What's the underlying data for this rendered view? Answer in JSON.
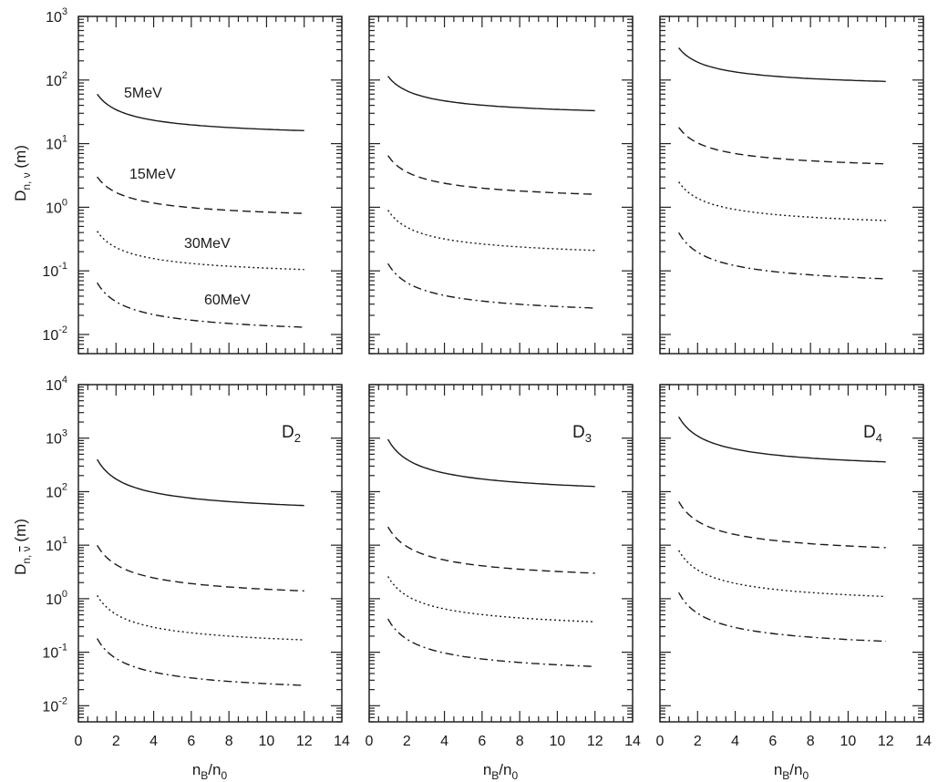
{
  "figure": {
    "xlabel_top": "n",
    "xlabel_sub1": "B",
    "xlabel_mid": "/n",
    "xlabel_sub2": "0",
    "ylabel_top": "D",
    "ylabel_top_sub": "n, ν",
    "ylabel_top_unit": " (m)",
    "ylabel_bottom": "D",
    "ylabel_bottom_sub_a": "n, ",
    "ylabel_bottom_sub_b": "ν",
    "ylabel_bottom_unit": " (m)",
    "energies": [
      "5MeV",
      "15MeV",
      "30MeV",
      "60MeV"
    ],
    "panel_labels": [
      "D",
      "D",
      "D"
    ],
    "panel_label_subs": [
      "2",
      "3",
      "4"
    ]
  },
  "chart_data": [
    {
      "type": "line",
      "panel": "top-left",
      "y_scale": "log",
      "xlim": [
        0,
        14
      ],
      "ylim": [
        0.005,
        1000
      ],
      "xticks": [
        0,
        2,
        4,
        6,
        8,
        10,
        12,
        14
      ],
      "yticks": [
        0.01,
        0.1,
        1,
        10,
        100,
        1000
      ],
      "ytick_labels": [
        "10^-2",
        "10^-1",
        "10^0",
        "10^1",
        "10^2",
        "10^3"
      ],
      "series": [
        {
          "name": "5MeV",
          "style": "solid",
          "x": [
            1,
            12
          ],
          "y": [
            60,
            16
          ]
        },
        {
          "name": "15MeV",
          "style": "dashed",
          "x": [
            1,
            12
          ],
          "y": [
            3.0,
            0.8
          ]
        },
        {
          "name": "30MeV",
          "style": "dotted",
          "x": [
            1,
            12
          ],
          "y": [
            0.42,
            0.105
          ]
        },
        {
          "name": "60MeV",
          "style": "dashdot",
          "x": [
            1,
            12
          ],
          "y": [
            0.065,
            0.013
          ]
        }
      ]
    },
    {
      "type": "line",
      "panel": "top-middle",
      "y_scale": "log",
      "xlim": [
        0,
        14
      ],
      "ylim": [
        0.005,
        1000
      ],
      "xticks": [
        0,
        2,
        4,
        6,
        8,
        10,
        12,
        14
      ],
      "series": [
        {
          "style": "solid",
          "x": [
            1,
            12
          ],
          "y": [
            115,
            33
          ]
        },
        {
          "style": "dashed",
          "x": [
            1,
            12
          ],
          "y": [
            6.5,
            1.6
          ]
        },
        {
          "style": "dotted",
          "x": [
            1,
            12
          ],
          "y": [
            0.9,
            0.21
          ]
        },
        {
          "style": "dashdot",
          "x": [
            1,
            12
          ],
          "y": [
            0.13,
            0.026
          ]
        }
      ]
    },
    {
      "type": "line",
      "panel": "top-right",
      "y_scale": "log",
      "xlim": [
        0,
        14
      ],
      "ylim": [
        0.005,
        1000
      ],
      "xticks": [
        0,
        2,
        4,
        6,
        8,
        10,
        12,
        14
      ],
      "series": [
        {
          "style": "solid",
          "x": [
            1,
            12
          ],
          "y": [
            320,
            95
          ]
        },
        {
          "style": "dashed",
          "x": [
            1,
            12
          ],
          "y": [
            18,
            4.8
          ]
        },
        {
          "style": "dotted",
          "x": [
            1,
            12
          ],
          "y": [
            2.5,
            0.62
          ]
        },
        {
          "style": "dashdot",
          "x": [
            1,
            12
          ],
          "y": [
            0.4,
            0.075
          ]
        }
      ]
    },
    {
      "type": "line",
      "panel": "bottom-left",
      "y_scale": "log",
      "xlim": [
        0,
        14
      ],
      "ylim": [
        0.005,
        10000
      ],
      "xticks": [
        0,
        2,
        4,
        6,
        8,
        10,
        12,
        14
      ],
      "yticks": [
        0.01,
        0.1,
        1,
        10,
        100,
        1000,
        10000
      ],
      "ytick_labels": [
        "10^-2",
        "10^-1",
        "10^0",
        "10^1",
        "10^2",
        "10^3",
        "10^4"
      ],
      "xlabel": "nB/n0",
      "series": [
        {
          "style": "solid",
          "x": [
            1,
            12
          ],
          "y": [
            400,
            55
          ]
        },
        {
          "style": "dashed",
          "x": [
            1,
            12
          ],
          "y": [
            10,
            1.4
          ]
        },
        {
          "style": "dotted",
          "x": [
            1,
            12
          ],
          "y": [
            1.15,
            0.17
          ]
        },
        {
          "style": "dashdot",
          "x": [
            1,
            12
          ],
          "y": [
            0.18,
            0.024
          ]
        }
      ]
    },
    {
      "type": "line",
      "panel": "bottom-middle",
      "y_scale": "log",
      "xlim": [
        0,
        14
      ],
      "ylim": [
        0.005,
        10000
      ],
      "xticks": [
        0,
        2,
        4,
        6,
        8,
        10,
        12,
        14
      ],
      "xlabel": "nB/n0",
      "series": [
        {
          "style": "solid",
          "x": [
            1,
            12
          ],
          "y": [
            950,
            125
          ]
        },
        {
          "style": "dashed",
          "x": [
            1,
            12
          ],
          "y": [
            22,
            3.0
          ]
        },
        {
          "style": "dotted",
          "x": [
            1,
            12
          ],
          "y": [
            2.6,
            0.37
          ]
        },
        {
          "style": "dashdot",
          "x": [
            1,
            12
          ],
          "y": [
            0.42,
            0.054
          ]
        }
      ]
    },
    {
      "type": "line",
      "panel": "bottom-right",
      "y_scale": "log",
      "xlim": [
        0,
        14
      ],
      "ylim": [
        0.005,
        10000
      ],
      "xticks": [
        0,
        2,
        4,
        6,
        8,
        10,
        12,
        14
      ],
      "xlabel": "nB/n0",
      "series": [
        {
          "style": "solid",
          "x": [
            1,
            12
          ],
          "y": [
            2500,
            360
          ]
        },
        {
          "style": "dashed",
          "x": [
            1,
            12
          ],
          "y": [
            65,
            9
          ]
        },
        {
          "style": "dotted",
          "x": [
            1,
            12
          ],
          "y": [
            8,
            1.1
          ]
        },
        {
          "style": "dashdot",
          "x": [
            1,
            12
          ],
          "y": [
            1.3,
            0.16
          ]
        }
      ]
    }
  ]
}
